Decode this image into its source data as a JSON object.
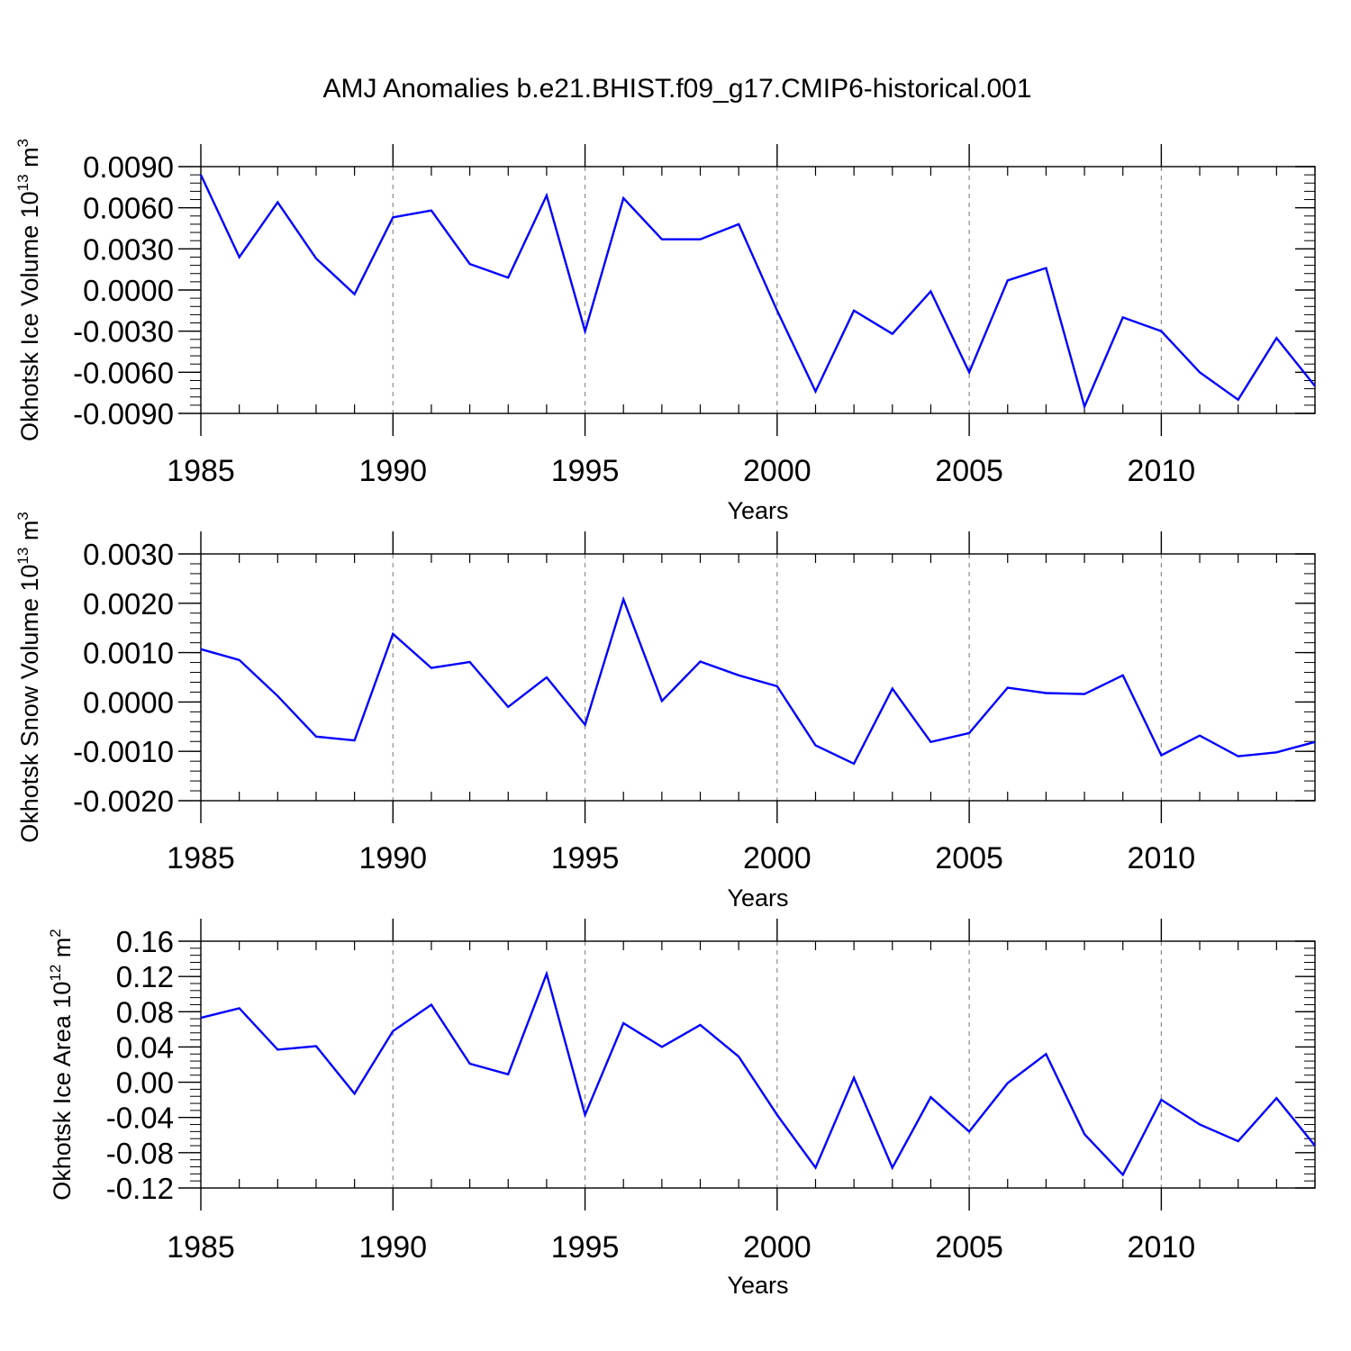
{
  "title": "AMJ Anomalies b.e21.BHIST.f09_g17.CMIP6-historical.001",
  "line_color": "#0000ff",
  "grid_color": "#8c8c8c",
  "chart_data": [
    {
      "type": "line",
      "ylabel": "Okhotsk Ice Volume",
      "ylabel_base": "10",
      "ylabel_exp": "13",
      "ylabel_unit": "m",
      "ylabel_unit_exp": "3",
      "xlabel": "Years",
      "xlim": [
        1985,
        2014
      ],
      "ylim": [
        -0.009,
        0.009
      ],
      "yticks": [
        -0.009,
        -0.006,
        -0.003,
        0.0,
        0.003,
        0.006,
        0.009
      ],
      "ytick_labels": [
        "-0.0090",
        "-0.0060",
        "-0.0030",
        "0.0000",
        "0.0030",
        "0.0060",
        "0.0090"
      ],
      "yminor": 0.0006,
      "xticks": [
        1985,
        1990,
        1995,
        2000,
        2005,
        2010
      ],
      "xtick_labels": [
        "1985",
        "1990",
        "1995",
        "2000",
        "2005",
        "2010"
      ],
      "grid": "vertical dashed at major x ticks",
      "x": [
        1985,
        1986,
        1987,
        1988,
        1989,
        1990,
        1991,
        1992,
        1993,
        1994,
        1995,
        1996,
        1997,
        1998,
        1999,
        2000,
        2001,
        2002,
        2003,
        2004,
        2005,
        2006,
        2007,
        2008,
        2009,
        2010,
        2011,
        2012,
        2013,
        2014
      ],
      "series": [
        {
          "name": "Okhotsk Ice Volume",
          "values": [
            0.0084,
            0.0024,
            0.0064,
            0.0023,
            -0.0003,
            0.0053,
            0.0058,
            0.0019,
            0.0009,
            0.0069,
            -0.003,
            0.0067,
            0.0037,
            0.0037,
            0.0048,
            -0.0015,
            -0.0074,
            -0.0015,
            -0.0032,
            -0.0001,
            -0.006,
            0.0007,
            0.0016,
            -0.0085,
            -0.002,
            -0.003,
            -0.006,
            -0.008,
            -0.0035,
            -0.007
          ]
        }
      ]
    },
    {
      "type": "line",
      "ylabel": "Okhotsk Snow Volume",
      "ylabel_base": "10",
      "ylabel_exp": "13",
      "ylabel_unit": "m",
      "ylabel_unit_exp": "3",
      "xlabel": "Years",
      "xlim": [
        1985,
        2014
      ],
      "ylim": [
        -0.002,
        0.003
      ],
      "yticks": [
        -0.002,
        -0.001,
        0.0,
        0.001,
        0.002,
        0.003
      ],
      "ytick_labels": [
        "-0.0020",
        "-0.0010",
        "0.0000",
        "0.0010",
        "0.0020",
        "0.0030"
      ],
      "yminor": 0.0002,
      "xticks": [
        1985,
        1990,
        1995,
        2000,
        2005,
        2010
      ],
      "xtick_labels": [
        "1985",
        "1990",
        "1995",
        "2000",
        "2005",
        "2010"
      ],
      "grid": "vertical dashed at major x ticks",
      "x": [
        1985,
        1986,
        1987,
        1988,
        1989,
        1990,
        1991,
        1992,
        1993,
        1994,
        1995,
        1996,
        1997,
        1998,
        1999,
        2000,
        2001,
        2002,
        2003,
        2004,
        2005,
        2006,
        2007,
        2008,
        2009,
        2010,
        2011,
        2012,
        2013,
        2014
      ],
      "series": [
        {
          "name": "Okhotsk Snow Volume",
          "values": [
            0.00107,
            0.00085,
            0.00012,
            -0.0007,
            -0.00078,
            0.00138,
            0.00069,
            0.00081,
            -0.0001,
            0.0005,
            -0.00046,
            0.00208,
            2e-05,
            0.00082,
            0.00054,
            0.00032,
            -0.00088,
            -0.00125,
            0.00027,
            -0.00081,
            -0.00063,
            0.00029,
            0.00018,
            0.00016,
            0.00054,
            -0.00108,
            -0.00068,
            -0.0011,
            -0.00102,
            -0.00081
          ]
        }
      ]
    },
    {
      "type": "line",
      "ylabel": "Okhotsk Ice Area",
      "ylabel_base": "10",
      "ylabel_exp": "12",
      "ylabel_unit": "m",
      "ylabel_unit_exp": "2",
      "xlabel": "Years",
      "xlim": [
        1985,
        2014
      ],
      "ylim": [
        -0.12,
        0.16
      ],
      "yticks": [
        -0.12,
        -0.08,
        -0.04,
        0.0,
        0.04,
        0.08,
        0.12,
        0.16
      ],
      "ytick_labels": [
        "-0.12",
        "-0.08",
        "-0.04",
        "0.00",
        "0.04",
        "0.08",
        "0.12",
        "0.16"
      ],
      "yminor": 0.008,
      "xticks": [
        1985,
        1990,
        1995,
        2000,
        2005,
        2010
      ],
      "xtick_labels": [
        "1985",
        "1990",
        "1995",
        "2000",
        "2005",
        "2010"
      ],
      "grid": "vertical dashed at major x ticks",
      "x": [
        1985,
        1986,
        1987,
        1988,
        1989,
        1990,
        1991,
        1992,
        1993,
        1994,
        1995,
        1996,
        1997,
        1998,
        1999,
        2000,
        2001,
        2002,
        2003,
        2004,
        2005,
        2006,
        2007,
        2008,
        2009,
        2010,
        2011,
        2012,
        2013,
        2014
      ],
      "series": [
        {
          "name": "Okhotsk Ice Area",
          "values": [
            0.073,
            0.084,
            0.037,
            0.041,
            -0.013,
            0.058,
            0.088,
            0.021,
            0.009,
            0.123,
            -0.037,
            0.067,
            0.04,
            0.065,
            0.029,
            -0.037,
            -0.097,
            0.005,
            -0.097,
            -0.017,
            -0.056,
            -0.001,
            0.032,
            -0.059,
            -0.105,
            -0.02,
            -0.048,
            -0.067,
            -0.018,
            -0.072
          ]
        }
      ]
    }
  ]
}
